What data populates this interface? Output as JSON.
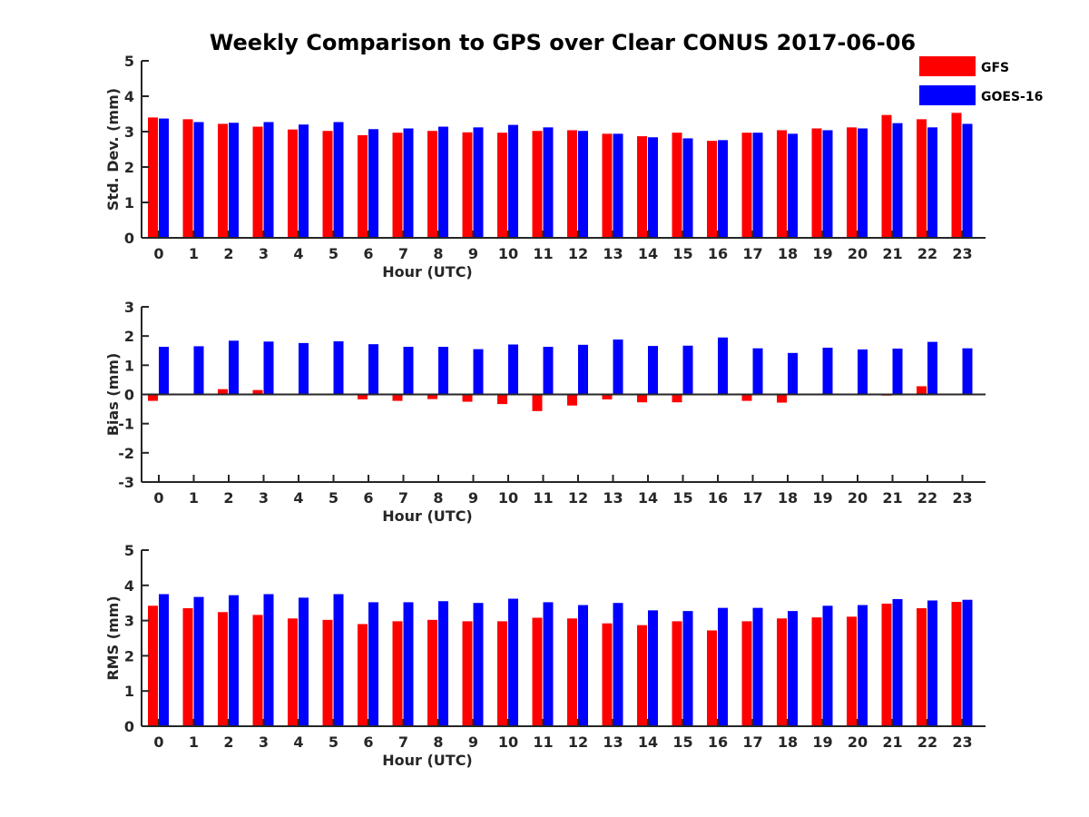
{
  "figure": {
    "title": "Weekly Comparison to GPS over Clear CONUS 2017-06-06"
  },
  "legend": {
    "position": "top-right",
    "entries": [
      {
        "name": "GFS",
        "color": "#ff0000"
      },
      {
        "name": "GOES-16",
        "color": "#0000ff"
      }
    ]
  },
  "chart_data": [
    {
      "type": "bar",
      "title": "",
      "xlabel": "Hour (UTC)",
      "ylabel": "Std. Dev. (mm)",
      "ylim": [
        0,
        5
      ],
      "yticks": [
        0,
        1,
        2,
        3,
        4,
        5
      ],
      "categories": [
        "0",
        "1",
        "2",
        "3",
        "4",
        "5",
        "6",
        "7",
        "8",
        "9",
        "10",
        "11",
        "12",
        "13",
        "14",
        "15",
        "16",
        "17",
        "18",
        "19",
        "20",
        "21",
        "22",
        "23"
      ],
      "series": [
        {
          "name": "GFS",
          "color": "#ff0000",
          "values": [
            3.4,
            3.35,
            3.22,
            3.14,
            3.06,
            3.02,
            2.9,
            2.97,
            3.02,
            2.98,
            2.97,
            3.02,
            3.04,
            2.94,
            2.87,
            2.97,
            2.74,
            2.97,
            3.04,
            3.09,
            3.12,
            3.47,
            3.35,
            3.53
          ]
        },
        {
          "name": "GOES-16",
          "color": "#0000ff",
          "values": [
            3.37,
            3.27,
            3.25,
            3.27,
            3.2,
            3.27,
            3.07,
            3.09,
            3.14,
            3.12,
            3.19,
            3.12,
            3.02,
            2.94,
            2.84,
            2.81,
            2.76,
            2.97,
            2.94,
            3.04,
            3.09,
            3.24,
            3.12,
            3.22
          ]
        }
      ]
    },
    {
      "type": "bar",
      "title": "",
      "xlabel": "Hour (UTC)",
      "ylabel": "Bias (mm)",
      "ylim": [
        -3,
        3
      ],
      "yticks": [
        -3,
        -2,
        -1,
        0,
        1,
        2,
        3
      ],
      "categories": [
        "0",
        "1",
        "2",
        "3",
        "4",
        "5",
        "6",
        "7",
        "8",
        "9",
        "10",
        "11",
        "12",
        "13",
        "14",
        "15",
        "16",
        "17",
        "18",
        "19",
        "20",
        "21",
        "22",
        "23"
      ],
      "series": [
        {
          "name": "GFS",
          "color": "#ff0000",
          "values": [
            -0.22,
            0.0,
            0.18,
            0.15,
            -0.03,
            0.0,
            -0.17,
            -0.22,
            -0.16,
            -0.25,
            -0.33,
            -0.57,
            -0.38,
            -0.17,
            -0.27,
            -0.27,
            0.02,
            -0.22,
            -0.28,
            0.0,
            0.02,
            -0.04,
            0.28,
            0.0
          ]
        },
        {
          "name": "GOES-16",
          "color": "#0000ff",
          "values": [
            1.63,
            1.65,
            1.84,
            1.81,
            1.76,
            1.82,
            1.72,
            1.63,
            1.63,
            1.55,
            1.71,
            1.63,
            1.7,
            1.88,
            1.66,
            1.67,
            1.95,
            1.58,
            1.42,
            1.6,
            1.54,
            1.57,
            1.8,
            1.58
          ]
        }
      ]
    },
    {
      "type": "bar",
      "title": "",
      "xlabel": "Hour (UTC)",
      "ylabel": "RMS (mm)",
      "ylim": [
        0,
        5
      ],
      "yticks": [
        0,
        1,
        2,
        3,
        4,
        5
      ],
      "categories": [
        "0",
        "1",
        "2",
        "3",
        "4",
        "5",
        "6",
        "7",
        "8",
        "9",
        "10",
        "11",
        "12",
        "13",
        "14",
        "15",
        "16",
        "17",
        "18",
        "19",
        "20",
        "21",
        "22",
        "23"
      ],
      "series": [
        {
          "name": "GFS",
          "color": "#ff0000",
          "values": [
            3.42,
            3.35,
            3.24,
            3.16,
            3.06,
            3.02,
            2.9,
            2.98,
            3.02,
            2.98,
            2.98,
            3.08,
            3.06,
            2.92,
            2.87,
            2.98,
            2.72,
            2.98,
            3.06,
            3.09,
            3.11,
            3.48,
            3.35,
            3.53
          ]
        },
        {
          "name": "GOES-16",
          "color": "#0000ff",
          "values": [
            3.75,
            3.67,
            3.72,
            3.75,
            3.65,
            3.75,
            3.52,
            3.52,
            3.55,
            3.5,
            3.62,
            3.52,
            3.44,
            3.5,
            3.29,
            3.27,
            3.36,
            3.36,
            3.27,
            3.42,
            3.44,
            3.61,
            3.57,
            3.59
          ]
        }
      ]
    }
  ]
}
